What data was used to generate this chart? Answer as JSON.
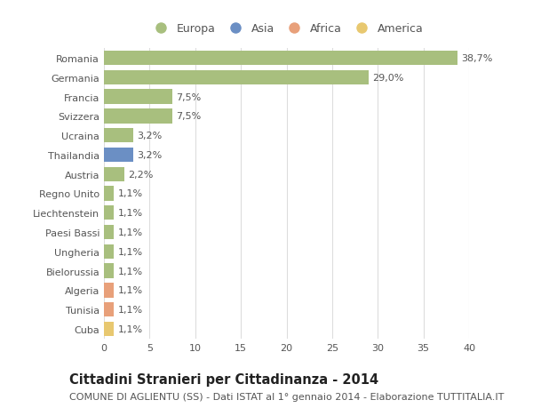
{
  "categories": [
    "Romania",
    "Germania",
    "Francia",
    "Svizzera",
    "Ucraina",
    "Thailandia",
    "Austria",
    "Regno Unito",
    "Liechtenstein",
    "Paesi Bassi",
    "Ungheria",
    "Bielorussia",
    "Algeria",
    "Tunisia",
    "Cuba"
  ],
  "values": [
    38.7,
    29.0,
    7.5,
    7.5,
    3.2,
    3.2,
    2.2,
    1.1,
    1.1,
    1.1,
    1.1,
    1.1,
    1.1,
    1.1,
    1.1
  ],
  "labels": [
    "38,7%",
    "29,0%",
    "7,5%",
    "7,5%",
    "3,2%",
    "3,2%",
    "2,2%",
    "1,1%",
    "1,1%",
    "1,1%",
    "1,1%",
    "1,1%",
    "1,1%",
    "1,1%",
    "1,1%"
  ],
  "colors": [
    "#a8bf7e",
    "#a8bf7e",
    "#a8bf7e",
    "#a8bf7e",
    "#a8bf7e",
    "#6b8fc4",
    "#a8bf7e",
    "#a8bf7e",
    "#a8bf7e",
    "#a8bf7e",
    "#a8bf7e",
    "#a8bf7e",
    "#e8a07a",
    "#e8a07a",
    "#e8c870"
  ],
  "legend": [
    {
      "label": "Europa",
      "color": "#a8bf7e"
    },
    {
      "label": "Asia",
      "color": "#6b8fc4"
    },
    {
      "label": "Africa",
      "color": "#e8a07a"
    },
    {
      "label": "America",
      "color": "#e8c870"
    }
  ],
  "xlim": [
    0,
    40
  ],
  "xticks": [
    0,
    5,
    10,
    15,
    20,
    25,
    30,
    35,
    40
  ],
  "title": "Cittadini Stranieri per Cittadinanza - 2014",
  "subtitle": "COMUNE DI AGLIENTU (SS) - Dati ISTAT al 1° gennaio 2014 - Elaborazione TUTTITALIA.IT",
  "bg_color": "#ffffff",
  "plot_bg_color": "#ffffff",
  "bar_height": 0.75,
  "title_fontsize": 10.5,
  "subtitle_fontsize": 8,
  "label_fontsize": 8,
  "tick_fontsize": 8,
  "legend_fontsize": 9
}
